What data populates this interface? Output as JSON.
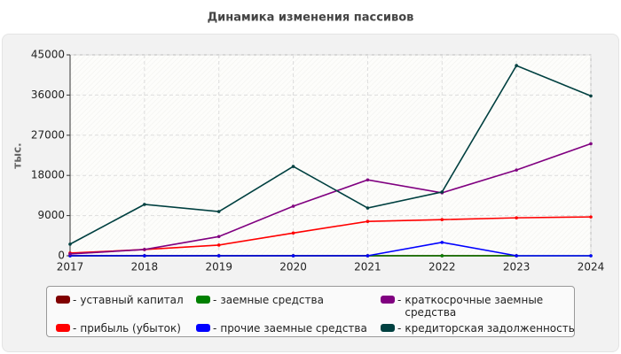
{
  "chart_data": {
    "type": "line",
    "title": "Динамика изменения пассивов",
    "y_label": "тыс.",
    "categories": [
      "2017",
      "2018",
      "2019",
      "2020",
      "2021",
      "2022",
      "2023",
      "2024"
    ],
    "series": [
      {
        "name": "уставный капитал",
        "color": "#800000",
        "values": [
          10,
          10,
          10,
          10,
          10,
          10,
          10,
          null
        ]
      },
      {
        "name": "прибыль (убыток)",
        "color": "#ff0000",
        "values": [
          600,
          1400,
          2400,
          5100,
          7700,
          8100,
          8500,
          8700
        ]
      },
      {
        "name": "заемные средства",
        "color": "#008000",
        "values": [
          0,
          0,
          0,
          0,
          0,
          0,
          0,
          0
        ]
      },
      {
        "name": "прочие заемные средства",
        "color": "#0000ff",
        "values": [
          0,
          0,
          0,
          0,
          0,
          3000,
          0,
          0
        ]
      },
      {
        "name": "краткосрочные заемные средства",
        "color": "#800080",
        "values": [
          400,
          1400,
          4300,
          11100,
          17000,
          14100,
          19200,
          25100
        ]
      },
      {
        "name": "кредиторская задолженность",
        "color": "#004040",
        "values": [
          2600,
          11500,
          9900,
          20000,
          10700,
          14300,
          42600,
          35800
        ]
      }
    ],
    "ylim": [
      0,
      45000
    ],
    "yticks": [
      0,
      9000,
      18000,
      27000,
      36000,
      45000
    ],
    "grid": true
  }
}
